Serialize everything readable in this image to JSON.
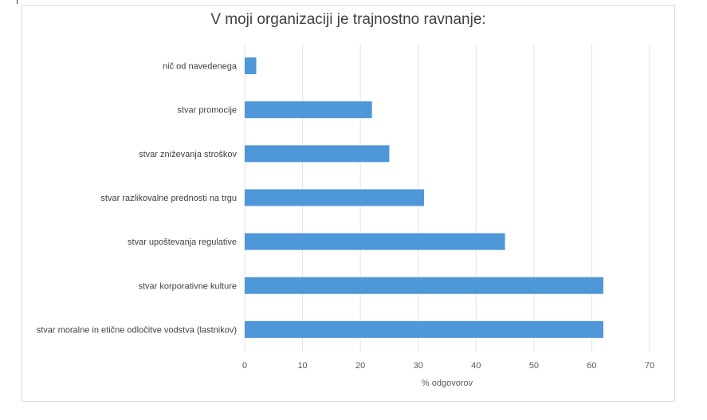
{
  "chart_data": {
    "type": "bar",
    "orientation": "horizontal",
    "title": "V moji organizaciji je trajnostno ravnanje:",
    "xlabel": "% odgovorov",
    "ylabel": "",
    "categories": [
      "nič od navedenega",
      "stvar promocije",
      "stvar zniževanja stroškov",
      "stvar razlikovalne prednosti na trgu",
      "stvar upoštevanja regulative",
      "stvar korporativne kulture",
      "stvar moralne in etične odločitve vodstva (lastnikov)"
    ],
    "values": [
      2,
      22,
      25,
      31,
      45,
      62,
      62
    ],
    "xlim": [
      0,
      70
    ],
    "xticks": [
      "0",
      "10",
      "20",
      "30",
      "40",
      "50",
      "60",
      "70"
    ],
    "grid": true,
    "legend": "none",
    "bar_color": "#4e97d8",
    "grid_color": "#e3e3e3"
  }
}
